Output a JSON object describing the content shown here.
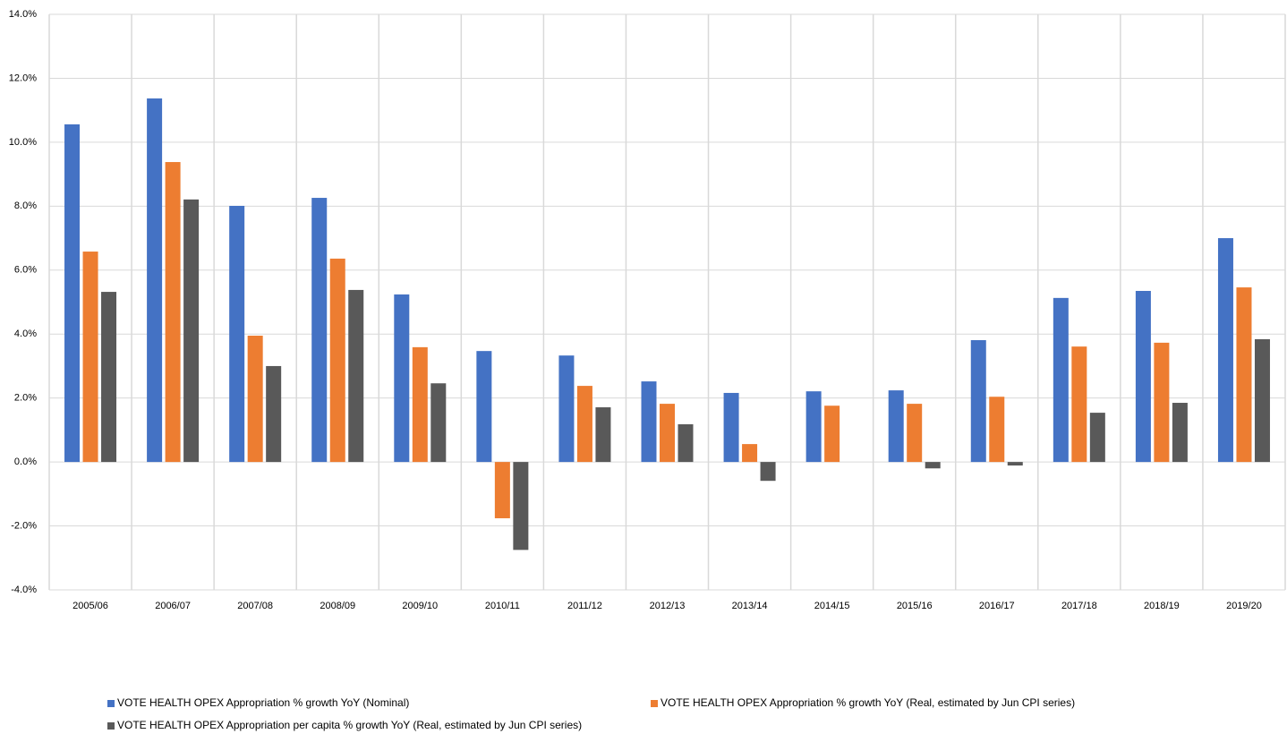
{
  "chart_data": {
    "type": "bar",
    "categories": [
      "2005/06",
      "2006/07",
      "2007/08",
      "2008/09",
      "2009/10",
      "2010/11",
      "2011/12",
      "2012/13",
      "2013/14",
      "2014/15",
      "2015/16",
      "2016/17",
      "2017/18",
      "2018/19",
      "2019/20"
    ],
    "series": [
      {
        "name": "VOTE HEALTH OPEX Appropriation % growth YoY (Nominal)",
        "color": "#4472c4",
        "values": [
          10.56,
          11.37,
          8.01,
          8.26,
          5.24,
          3.47,
          3.33,
          2.52,
          2.16,
          2.21,
          2.24,
          3.81,
          5.13,
          5.35,
          7.0
        ]
      },
      {
        "name": "VOTE HEALTH OPEX Appropriation % growth YoY (Real, estimated by Jun CPI series)",
        "color": "#ed7d31",
        "values": [
          6.58,
          9.38,
          3.95,
          6.36,
          3.59,
          -1.76,
          2.38,
          1.82,
          0.56,
          1.76,
          1.82,
          2.04,
          3.61,
          3.73,
          5.46
        ]
      },
      {
        "name": "VOTE HEALTH OPEX Appropriation per capita % growth YoY (Real, estimated by Jun CPI series)",
        "color": "#595959",
        "values": [
          5.32,
          8.21,
          3.0,
          5.38,
          2.46,
          -2.75,
          1.71,
          1.18,
          -0.59,
          null,
          -0.2,
          -0.11,
          1.54,
          1.85,
          3.84
        ]
      }
    ],
    "ylim": [
      -4,
      14
    ],
    "yticks": [
      {
        "value": -4,
        "label": "-4.0%"
      },
      {
        "value": -2,
        "label": "-2.0%"
      },
      {
        "value": 0,
        "label": "0.0%"
      },
      {
        "value": 2,
        "label": "2.0%"
      },
      {
        "value": 4,
        "label": "4.0%"
      },
      {
        "value": 6,
        "label": "6.0%"
      },
      {
        "value": 8,
        "label": "8.0%"
      },
      {
        "value": 10,
        "label": "10.0%"
      },
      {
        "value": 12,
        "label": "12.0%"
      },
      {
        "value": 14,
        "label": "14.0%"
      }
    ],
    "negative_tick_color": "#ff0000",
    "grid": true,
    "legend": "bottom"
  }
}
